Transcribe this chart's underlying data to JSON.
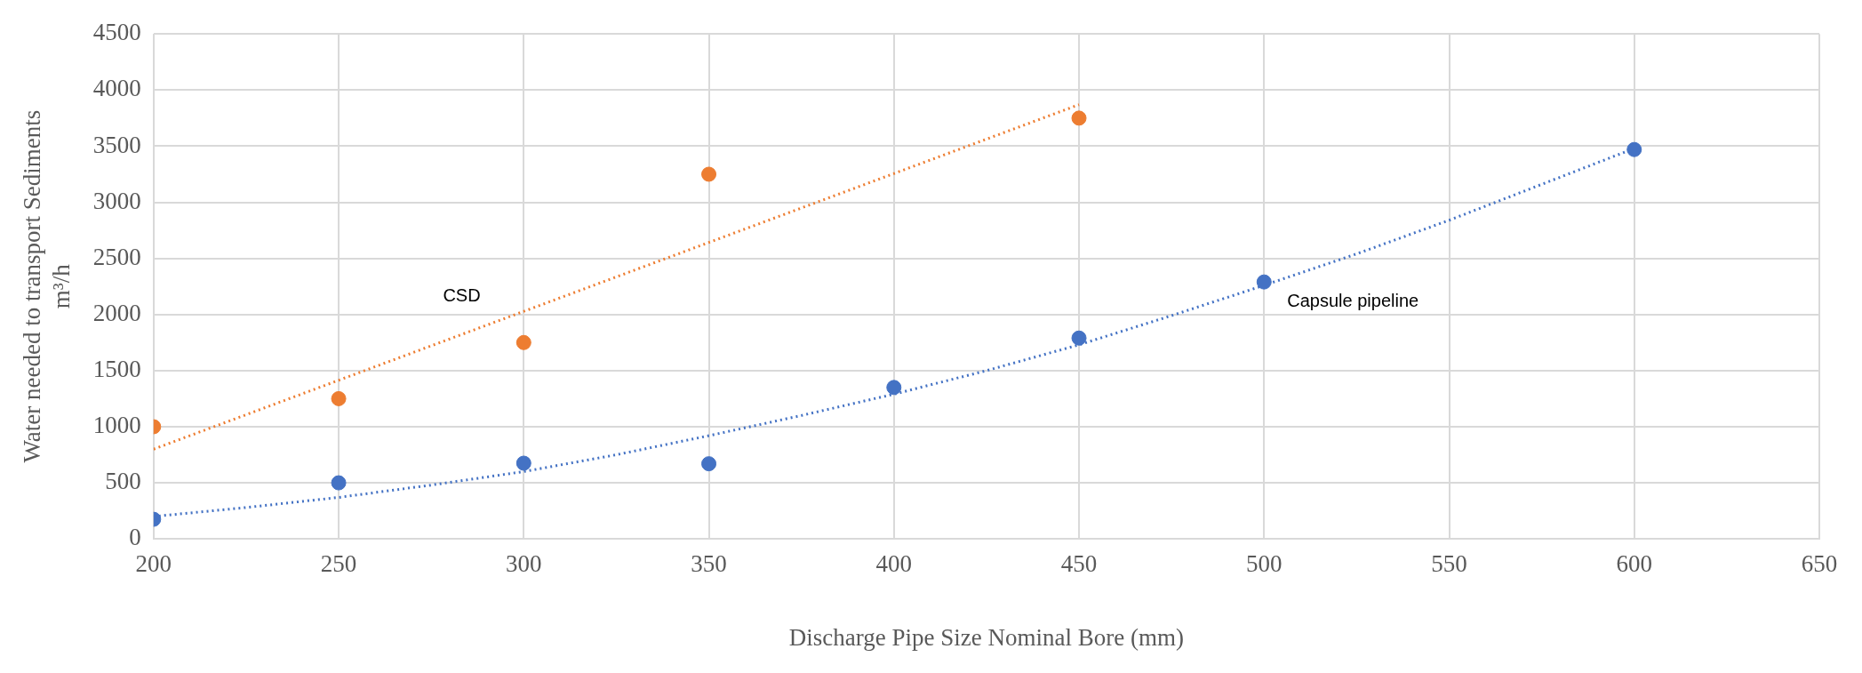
{
  "chart_data": {
    "type": "scatter",
    "xlabel": "Discharge Pipe Size Nominal Bore (mm)",
    "ylabel": "Water needed to transport Sediments\nm³/h",
    "xlim": [
      200,
      650
    ],
    "xticks": [
      200,
      250,
      300,
      350,
      400,
      450,
      500,
      550,
      600,
      650
    ],
    "ylim": [
      0,
      4500
    ],
    "yticks": [
      0,
      500,
      1000,
      1500,
      2000,
      2500,
      3000,
      3500,
      4000,
      4500
    ],
    "grid": true,
    "marker": "circle",
    "legend": false,
    "series": [
      {
        "name": "CSD",
        "color": "#ed7d31",
        "x": [
          200,
          250,
          300,
          350,
          450
        ],
        "values": [
          1000,
          1250,
          1750,
          3250,
          3750
        ]
      },
      {
        "name": "Capsule pipeline",
        "color": "#4472c4",
        "x": [
          200,
          250,
          300,
          350,
          400,
          450,
          500,
          600
        ],
        "values": [
          175,
          500,
          675,
          670,
          1350,
          1790,
          2290,
          3470
        ]
      },
      {
        "type": "line",
        "color": "#ed7d31",
        "line_style": "dotted",
        "marker": "none",
        "x": [
          200,
          450
        ],
        "values": [
          800,
          3870
        ]
      },
      {
        "type": "line",
        "color": "#4472c4",
        "line_style": "dotted",
        "marker": "none",
        "x": [
          200,
          225,
          250,
          275,
          300,
          325,
          350,
          375,
          400,
          425,
          450,
          475,
          500,
          525,
          550,
          575,
          600
        ],
        "values": [
          200,
          280,
          370,
          480,
          600,
          750,
          920,
          1100,
          1290,
          1500,
          1730,
          1990,
          2260,
          2540,
          2840,
          3160,
          3480
        ]
      }
    ]
  }
}
